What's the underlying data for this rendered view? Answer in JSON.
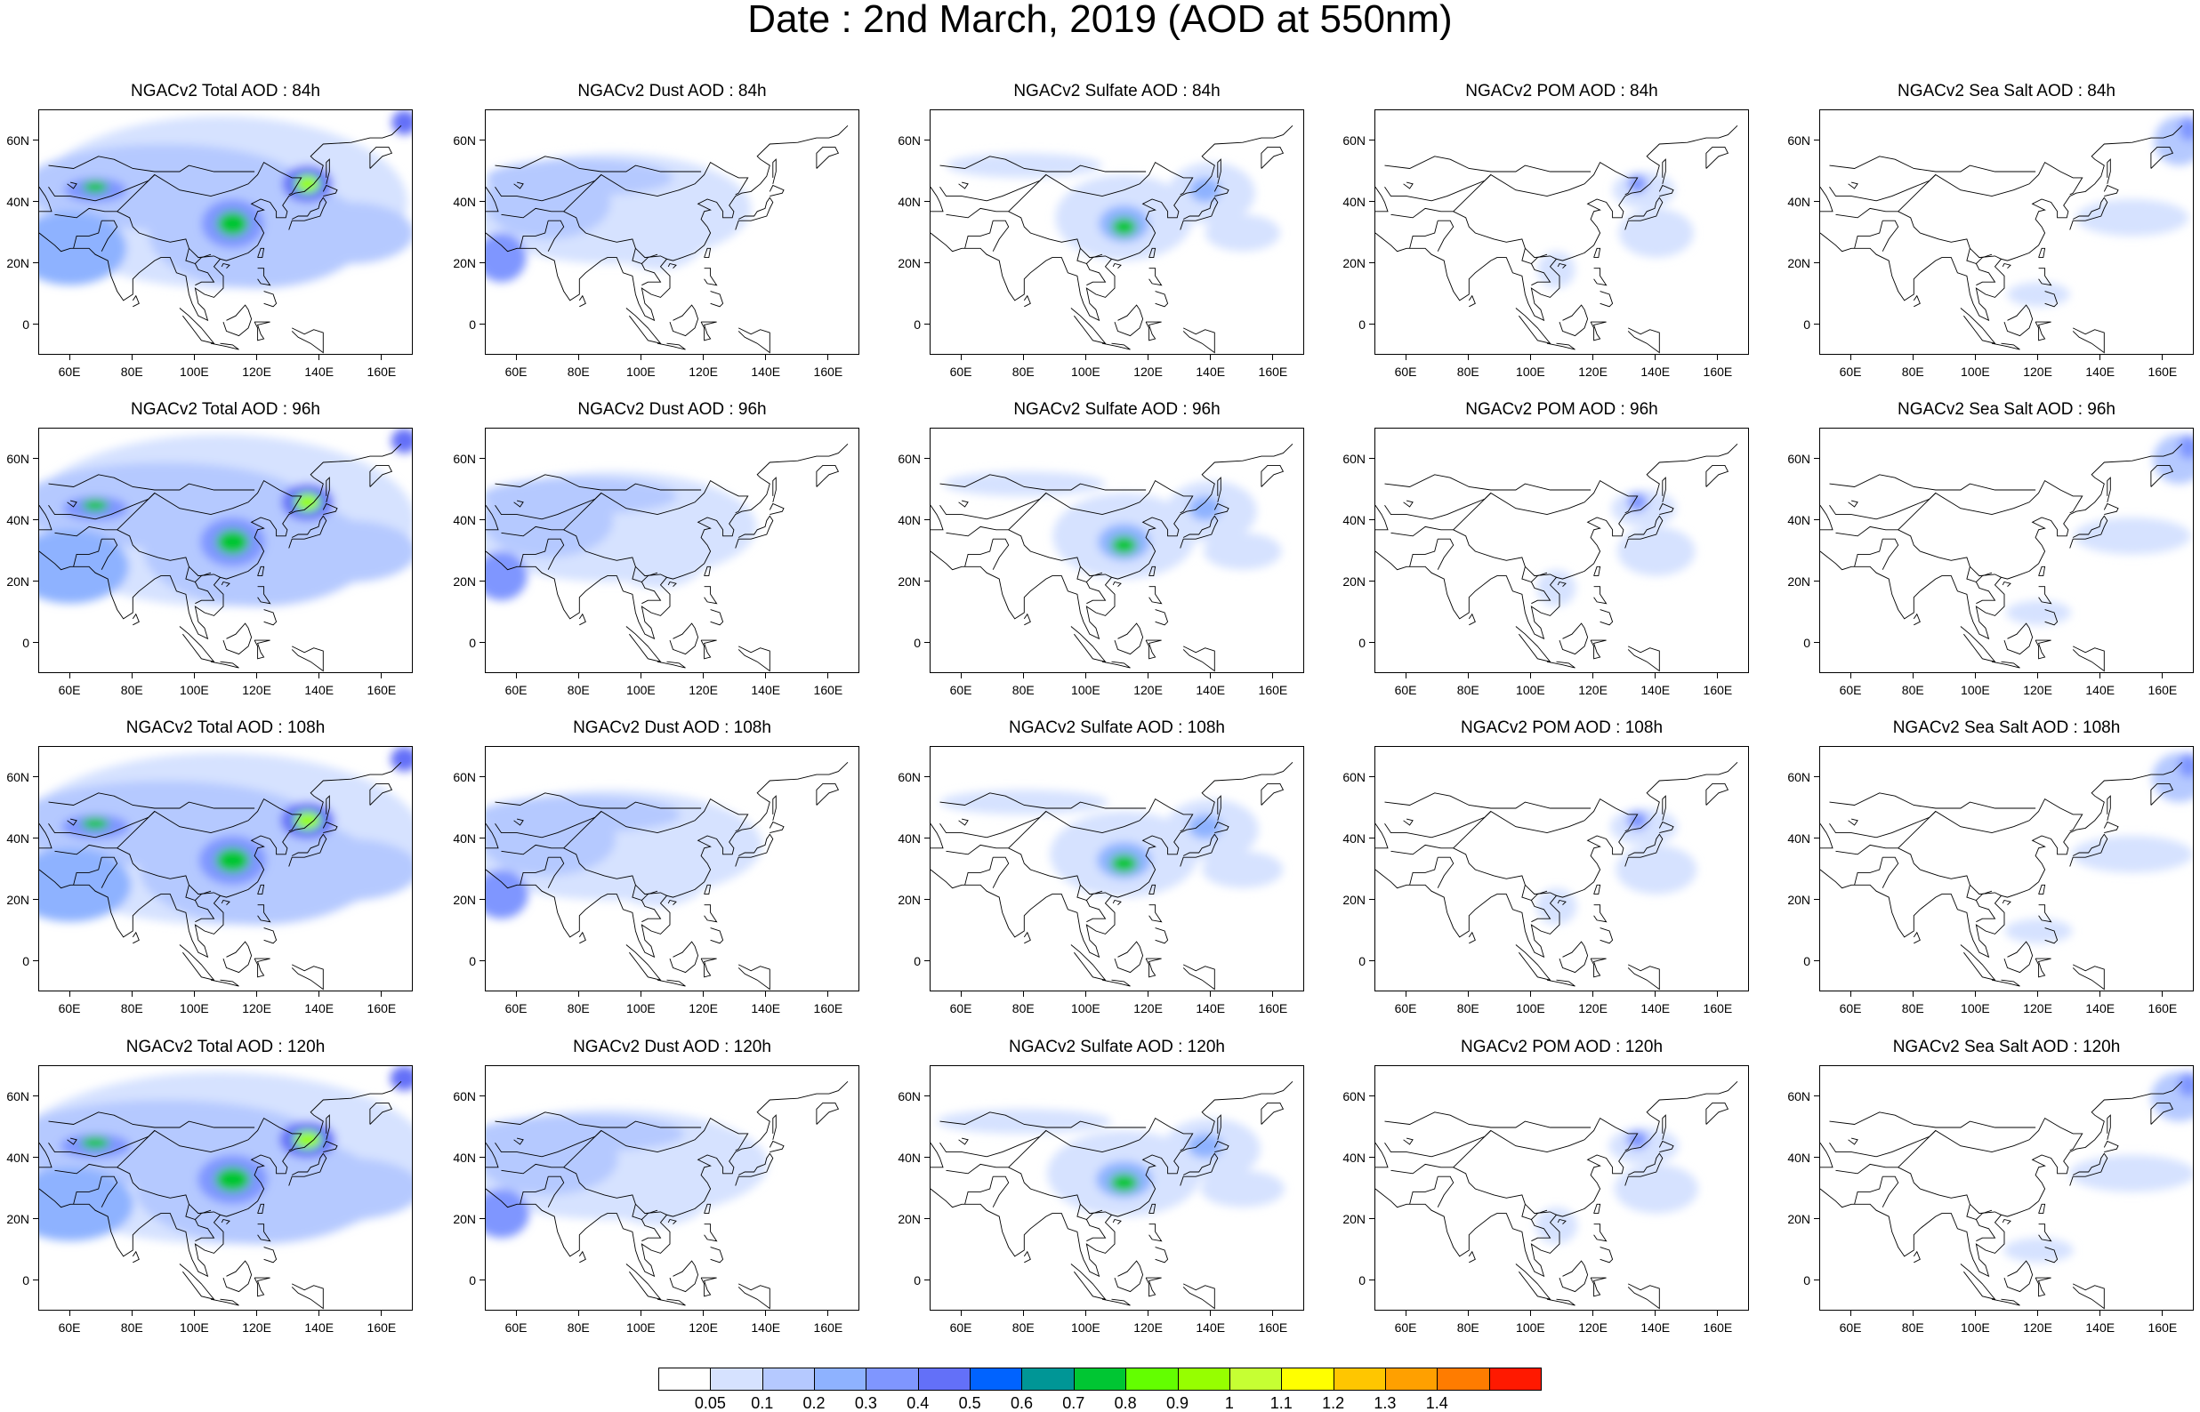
{
  "title": "Date : 2nd March, 2019 (AOD at 550nm)",
  "panels": [
    [
      "NGACv2 Total AOD : 84h",
      "NGACv2 Dust AOD : 84h",
      "NGACv2 Sulfate AOD : 84h",
      "NGACv2 POM AOD : 84h",
      "NGACv2 Sea Salt AOD : 84h"
    ],
    [
      "NGACv2 Total AOD : 96h",
      "NGACv2 Dust AOD : 96h",
      "NGACv2 Sulfate AOD : 96h",
      "NGACv2 POM AOD : 96h",
      "NGACv2 Sea Salt AOD : 96h"
    ],
    [
      "NGACv2 Total AOD : 108h",
      "NGACv2 Dust AOD : 108h",
      "NGACv2 Sulfate AOD : 108h",
      "NGACv2 POM AOD : 108h",
      "NGACv2 Sea Salt AOD : 108h"
    ],
    [
      "NGACv2 Total AOD : 120h",
      "NGACv2 Dust AOD : 120h",
      "NGACv2 Sulfate AOD : 120h",
      "NGACv2 POM AOD : 120h",
      "NGACv2 Sea Salt  AOD : 120h"
    ]
  ],
  "axes": {
    "lon_ticks": [
      "60E",
      "80E",
      "100E",
      "120E",
      "140E",
      "160E"
    ],
    "lat_ticks": [
      "60N",
      "40N",
      "20N",
      "0"
    ],
    "lon_range": [
      50,
      170
    ],
    "lat_range": [
      -10,
      70
    ]
  },
  "colorbar": {
    "labels": [
      "0.05",
      "0.1",
      "0.2",
      "0.3",
      "0.4",
      "0.5",
      "0.6",
      "0.7",
      "0.8",
      "0.9",
      "1",
      "1.1",
      "1.2",
      "1.3",
      "1.4"
    ],
    "colors": [
      "#ffffff",
      "#d6e2ff",
      "#b5c9ff",
      "#8eb2ff",
      "#7f96ff",
      "#6370f8",
      "#0063ff",
      "#009696",
      "#00c633",
      "#63ff00",
      "#96ff00",
      "#c6ff33",
      "#ffff00",
      "#ffc600",
      "#ffa000",
      "#ff7c00",
      "#ff1900"
    ]
  }
}
